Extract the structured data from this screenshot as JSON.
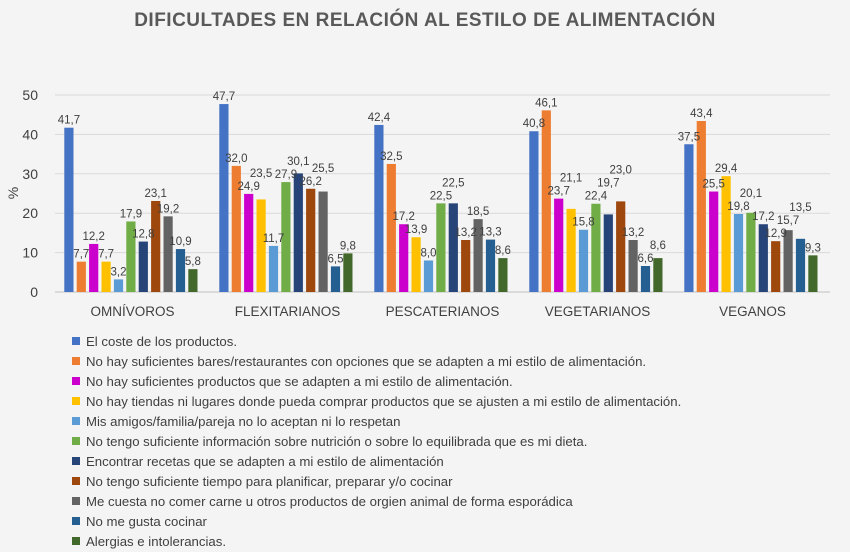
{
  "chart_data": {
    "type": "bar",
    "title": "DIFICULTADES EN RELACIÓN AL ESTILO DE ALIMENTACIÓN",
    "xlabel": "",
    "ylabel": "%",
    "ylim": [
      0,
      50
    ],
    "yticks": [
      "0",
      "10",
      "20",
      "30",
      "40",
      "50"
    ],
    "grid": true,
    "legend_position": "bottom",
    "categories": [
      "OMNÍVOROS",
      "FLEXITARIANOS",
      "PESCATERIANOS",
      "VEGETARIANOS",
      "VEGANOS"
    ],
    "series": [
      {
        "name": "El coste de los productos.",
        "color": "#4472c4",
        "values": [
          41.7,
          47.7,
          42.4,
          40.8,
          37.5
        ],
        "labels": [
          "41,7",
          "47,7",
          "42,4",
          "40,8",
          "37,5"
        ]
      },
      {
        "name": "No hay suficientes bares/restaurantes con opciones que se adapten a mi estilo de alimentación.",
        "color": "#ed7d31",
        "values": [
          7.7,
          32.0,
          32.5,
          46.1,
          43.4
        ],
        "labels": [
          "7,7",
          "32,0",
          "32,5",
          "46,1",
          "43,4"
        ]
      },
      {
        "name": "No hay suficientes productos que se adapten a mi estilo de alimentación.",
        "color": "#cc00cc",
        "values": [
          12.2,
          24.9,
          17.2,
          23.7,
          25.5
        ],
        "labels": [
          "12,2",
          "24,9",
          "17,2",
          "23,7",
          "25,5"
        ]
      },
      {
        "name": "No hay tiendas ni lugares donde pueda comprar productos que se ajusten a mi estilo de alimentación.",
        "color": "#ffc000",
        "values": [
          7.7,
          23.5,
          13.9,
          21.1,
          29.4
        ],
        "labels": [
          "7,7",
          "23,5",
          "13,9",
          "21,1",
          "29,4"
        ]
      },
      {
        "name": "Mis amigos/familia/pareja no lo aceptan ni lo respetan",
        "color": "#5b9bd5",
        "values": [
          3.2,
          11.7,
          8.0,
          15.8,
          19.8
        ],
        "labels": [
          "3,2",
          "11,7",
          "8,0",
          "15,8",
          "19,8"
        ]
      },
      {
        "name": "No tengo suficiente información sobre nutrición o sobre lo equilibrada que es mi dieta.",
        "color": "#70ad47",
        "values": [
          17.9,
          27.9,
          22.5,
          22.4,
          20.1
        ],
        "labels": [
          "17,9",
          "27,9",
          "22,5",
          "22,4",
          "20,1"
        ]
      },
      {
        "name": "Encontrar recetas que se adapten a mi estilo de alimentación",
        "color": "#264478",
        "values": [
          12.8,
          30.1,
          22.5,
          19.7,
          17.2
        ],
        "labels": [
          "12,8",
          "30,1",
          "22,5",
          "19,7",
          "17,2"
        ]
      },
      {
        "name": "No tengo suficiente tiempo para planificar, preparar y/o cocinar",
        "color": "#9e480e",
        "values": [
          23.1,
          26.2,
          13.2,
          23.0,
          12.9
        ],
        "labels": [
          "23,1",
          "26,2",
          "13,2",
          "23,0",
          "12,9"
        ]
      },
      {
        "name": "Me cuesta no comer carne u otros productos de orgien animal de forma esporádica",
        "color": "#636363",
        "values": [
          19.2,
          25.5,
          18.5,
          13.2,
          15.7
        ],
        "labels": [
          "19,2",
          "25,5",
          "18,5",
          "13,2",
          "15,7"
        ]
      },
      {
        "name": "No me gusta cocinar",
        "color": "#255e91",
        "values": [
          10.9,
          6.5,
          13.3,
          6.6,
          13.5
        ],
        "labels": [
          "10,9",
          "6,5",
          "13,3",
          "6,6",
          "13,5"
        ]
      },
      {
        "name": "Alergias e intolerancias.",
        "color": "#43682b",
        "values": [
          5.8,
          9.8,
          8.6,
          8.6,
          9.3
        ],
        "labels": [
          "5,8",
          "9,8",
          "8,6",
          "8,6",
          "9,3"
        ]
      }
    ]
  }
}
